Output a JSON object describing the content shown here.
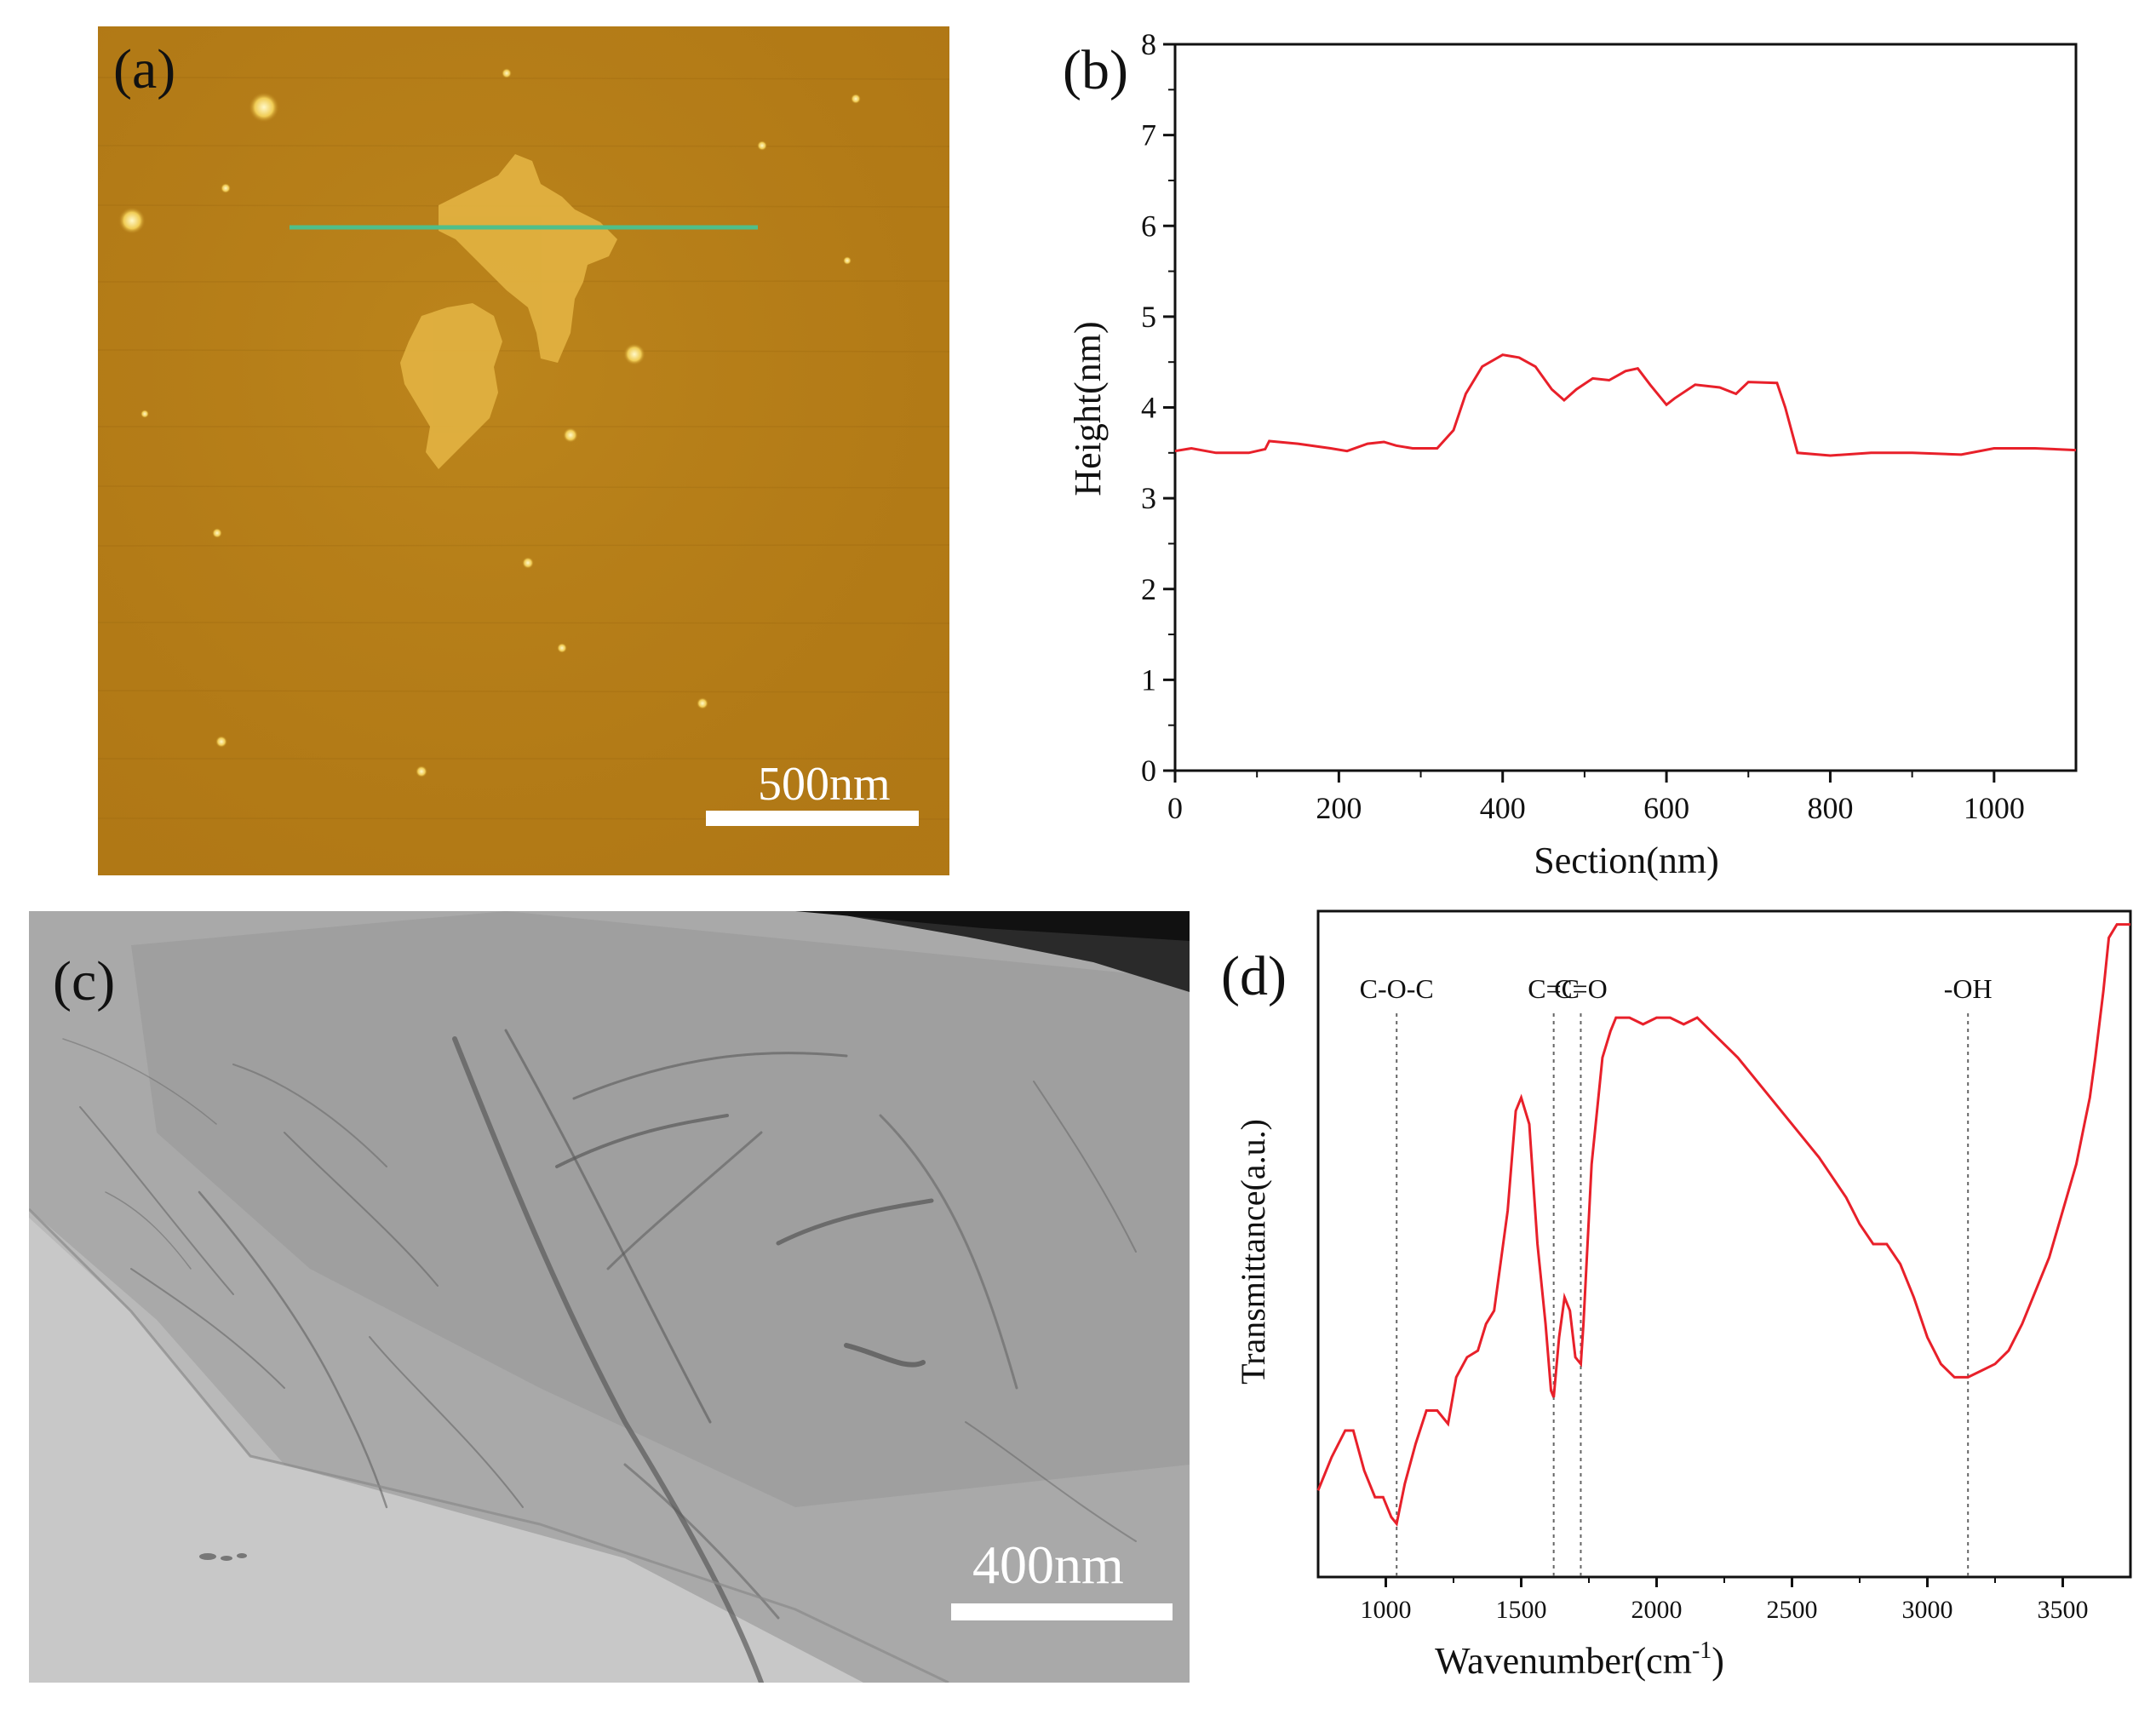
{
  "panels": {
    "a": {
      "label": "(a)",
      "scale_bar": "500nm"
    },
    "b": {
      "label": "(b)"
    },
    "c": {
      "label": "(c)",
      "scale_bar": "400nm"
    },
    "d": {
      "label": "(d)"
    }
  },
  "chart_data": [
    {
      "panel": "b",
      "type": "line",
      "title": "",
      "xlabel": "Section(nm)",
      "ylabel": "Height(nm)",
      "xlim": [
        0,
        1100
      ],
      "ylim": [
        0,
        8
      ],
      "xticks": [
        0,
        200,
        400,
        600,
        800,
        1000
      ],
      "yticks": [
        0,
        1,
        2,
        3,
        4,
        5,
        6,
        7,
        8
      ],
      "grid": false,
      "color": "#e8202a",
      "series": [
        {
          "name": "height-profile",
          "x": [
            0,
            20,
            50,
            90,
            110,
            115,
            150,
            190,
            210,
            235,
            255,
            270,
            290,
            320,
            340,
            355,
            375,
            400,
            420,
            440,
            460,
            475,
            490,
            510,
            530,
            550,
            565,
            580,
            600,
            610,
            635,
            665,
            685,
            700,
            735,
            745,
            760,
            800,
            850,
            900,
            960,
            1000,
            1050,
            1100
          ],
          "y": [
            3.52,
            3.55,
            3.5,
            3.5,
            3.54,
            3.63,
            3.6,
            3.55,
            3.52,
            3.6,
            3.62,
            3.58,
            3.55,
            3.55,
            3.75,
            4.15,
            4.45,
            4.58,
            4.55,
            4.45,
            4.2,
            4.08,
            4.2,
            4.32,
            4.3,
            4.4,
            4.43,
            4.25,
            4.03,
            4.1,
            4.25,
            4.22,
            4.15,
            4.28,
            4.27,
            4.0,
            3.5,
            3.47,
            3.5,
            3.5,
            3.48,
            3.55,
            3.55,
            3.53
          ]
        }
      ]
    },
    {
      "panel": "d",
      "type": "line",
      "title": "",
      "xlabel": "Wavenumber(cm-1)",
      "xlabel_base": "Wavenumber(cm",
      "xlabel_sup": "-1",
      "xlabel_close": ")",
      "ylabel": "Transmittance(a.u.)",
      "xlim": [
        750,
        3750
      ],
      "ylim": [
        0,
        100
      ],
      "xticks": [
        1000,
        1500,
        2000,
        2500,
        3000,
        3500
      ],
      "grid": false,
      "color": "#e8202a",
      "annotations": [
        {
          "label": "C-O-C",
          "x": 1040
        },
        {
          "label": "C=C",
          "x": 1620
        },
        {
          "label": "C=O",
          "x": 1720
        },
        {
          "label": "-OH",
          "x": 3150
        }
      ],
      "series": [
        {
          "name": "ftir-spectrum",
          "x": [
            750,
            800,
            850,
            880,
            920,
            960,
            990,
            1020,
            1040,
            1070,
            1110,
            1150,
            1190,
            1230,
            1260,
            1300,
            1340,
            1370,
            1400,
            1450,
            1480,
            1500,
            1530,
            1560,
            1590,
            1610,
            1620,
            1640,
            1660,
            1680,
            1700,
            1720,
            1730,
            1760,
            1800,
            1830,
            1850,
            1900,
            1950,
            2000,
            2050,
            2100,
            2150,
            2200,
            2300,
            2400,
            2500,
            2600,
            2700,
            2750,
            2800,
            2850,
            2900,
            2950,
            3000,
            3050,
            3100,
            3150,
            3200,
            3250,
            3300,
            3350,
            3400,
            3450,
            3500,
            3550,
            3580,
            3600,
            3620,
            3650,
            3670,
            3700,
            3750
          ],
          "y": [
            13,
            18,
            22,
            22,
            16,
            12,
            12,
            9,
            8,
            14,
            20,
            25,
            25,
            23,
            30,
            33,
            34,
            38,
            40,
            55,
            70,
            72,
            68,
            50,
            38,
            28,
            27,
            36,
            42,
            40,
            33,
            32,
            38,
            62,
            78,
            82,
            84,
            84,
            83,
            84,
            84,
            83,
            84,
            82,
            78,
            73,
            68,
            63,
            57,
            53,
            50,
            50,
            47,
            42,
            36,
            32,
            30,
            30,
            31,
            32,
            34,
            38,
            43,
            48,
            55,
            62,
            68,
            72,
            78,
            88,
            96,
            98,
            98
          ]
        }
      ]
    }
  ]
}
